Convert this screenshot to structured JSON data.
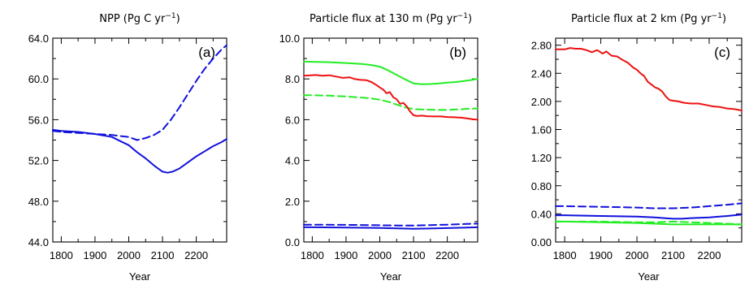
{
  "colors": {
    "red": "#ee1111",
    "green": "#22ee22",
    "blue": "#1111dd"
  },
  "chart_data": [
    {
      "type": "line",
      "title": "NPP (Pg C yr",
      "title_sup": "−1",
      "title_tail": ")",
      "panel_label": "(a)",
      "xlabel": "Year",
      "ylabel": "",
      "xlim": [
        1775,
        2290
      ],
      "ylim": [
        44.0,
        64.0
      ],
      "x_ticks": [
        1800,
        1900,
        2000,
        2100,
        2200
      ],
      "y_ticks": [
        "44.0",
        "48.0",
        "52.0",
        "56.0",
        "60.0",
        "64.0"
      ],
      "series": [
        {
          "color": "blue",
          "dash": false,
          "x": [
            1775,
            1800,
            1850,
            1900,
            1950,
            1975,
            2000,
            2025,
            2050,
            2075,
            2100,
            2115,
            2130,
            2150,
            2175,
            2200,
            2225,
            2250,
            2275,
            2290
          ],
          "y": [
            55.0,
            54.9,
            54.8,
            54.6,
            54.3,
            53.9,
            53.5,
            52.8,
            52.2,
            51.5,
            50.9,
            50.8,
            50.9,
            51.2,
            51.8,
            52.4,
            52.9,
            53.4,
            53.8,
            54.1
          ]
        },
        {
          "color": "blue",
          "dash": true,
          "x": [
            1775,
            1800,
            1850,
            1900,
            1950,
            1975,
            2000,
            2025,
            2050,
            2075,
            2100,
            2125,
            2150,
            2175,
            2200,
            2225,
            2250,
            2275,
            2290
          ],
          "y": [
            54.9,
            54.8,
            54.7,
            54.6,
            54.5,
            54.4,
            54.3,
            54.0,
            54.2,
            54.5,
            55.0,
            56.0,
            57.2,
            58.5,
            59.8,
            61.0,
            62.0,
            62.9,
            63.3
          ]
        }
      ]
    },
    {
      "type": "line",
      "title": "Particle flux at 130 m (Pg yr",
      "title_sup": "−1",
      "title_tail": ")",
      "panel_label": "(b)",
      "xlabel": "Year",
      "ylabel": "",
      "xlim": [
        1775,
        2290
      ],
      "ylim": [
        0.0,
        10.0
      ],
      "x_ticks": [
        1800,
        1900,
        2000,
        2100,
        2200
      ],
      "y_ticks": [
        "0.0",
        "2.0",
        "4.0",
        "6.0",
        "8.0",
        "10.0"
      ],
      "series": [
        {
          "color": "green",
          "dash": false,
          "x": [
            1775,
            1800,
            1850,
            1900,
            1950,
            1975,
            2000,
            2025,
            2050,
            2075,
            2100,
            2125,
            2150,
            2175,
            2200,
            2225,
            2250,
            2275,
            2290
          ],
          "y": [
            8.85,
            8.84,
            8.82,
            8.78,
            8.73,
            8.68,
            8.6,
            8.42,
            8.2,
            7.98,
            7.78,
            7.74,
            7.75,
            7.78,
            7.82,
            7.85,
            7.9,
            7.96,
            8.0
          ]
        },
        {
          "color": "green",
          "dash": true,
          "x": [
            1775,
            1800,
            1850,
            1900,
            1950,
            1975,
            2000,
            2025,
            2050,
            2075,
            2100,
            2125,
            2150,
            2175,
            2200,
            2225,
            2250,
            2275,
            2290
          ],
          "y": [
            7.2,
            7.2,
            7.18,
            7.14,
            7.08,
            7.04,
            6.98,
            6.88,
            6.74,
            6.6,
            6.52,
            6.5,
            6.49,
            6.48,
            6.48,
            6.5,
            6.52,
            6.54,
            6.55
          ]
        },
        {
          "color": "red",
          "dash": false,
          "x": [
            1775,
            1790,
            1810,
            1830,
            1850,
            1870,
            1890,
            1910,
            1925,
            1940,
            1960,
            1975,
            1990,
            2000,
            2010,
            2020,
            2030,
            2040,
            2050,
            2060,
            2070,
            2080,
            2090,
            2100,
            2110,
            2125,
            2140,
            2160,
            2180,
            2200,
            2220,
            2240,
            2260,
            2275,
            2290
          ],
          "y": [
            8.16,
            8.17,
            8.19,
            8.16,
            8.18,
            8.12,
            8.05,
            8.08,
            8.0,
            7.96,
            7.94,
            7.85,
            7.7,
            7.58,
            7.48,
            7.3,
            7.35,
            7.1,
            7.0,
            6.78,
            6.82,
            6.65,
            6.4,
            6.22,
            6.18,
            6.2,
            6.17,
            6.16,
            6.16,
            6.13,
            6.12,
            6.1,
            6.06,
            6.02,
            6.0
          ]
        },
        {
          "color": "blue",
          "dash": false,
          "x": [
            1775,
            1800,
            1900,
            2000,
            2050,
            2100,
            2150,
            2200,
            2250,
            2290
          ],
          "y": [
            0.72,
            0.72,
            0.71,
            0.69,
            0.67,
            0.65,
            0.66,
            0.68,
            0.7,
            0.72
          ]
        },
        {
          "color": "blue",
          "dash": true,
          "x": [
            1775,
            1800,
            1900,
            2000,
            2050,
            2100,
            2150,
            2200,
            2250,
            2290
          ],
          "y": [
            0.85,
            0.85,
            0.84,
            0.82,
            0.81,
            0.81,
            0.83,
            0.85,
            0.88,
            0.9
          ]
        }
      ]
    },
    {
      "type": "line",
      "title": "Particle flux at 2 km (Pg yr",
      "title_sup": "−1",
      "title_tail": ")",
      "panel_label": "(c)",
      "xlabel": "Year",
      "ylabel": "",
      "xlim": [
        1775,
        2290
      ],
      "ylim": [
        0.0,
        2.9
      ],
      "x_ticks": [
        1800,
        1900,
        2000,
        2100,
        2200
      ],
      "y_ticks": [
        "0.00",
        "0.40",
        "0.80",
        "1.20",
        "1.60",
        "2.00",
        "2.40",
        "2.80"
      ],
      "series": [
        {
          "color": "red",
          "dash": false,
          "x": [
            1775,
            1800,
            1815,
            1830,
            1845,
            1860,
            1875,
            1890,
            1905,
            1915,
            1930,
            1945,
            1960,
            1975,
            1990,
            2000,
            2010,
            2020,
            2030,
            2040,
            2050,
            2060,
            2070,
            2080,
            2090,
            2100,
            2115,
            2130,
            2150,
            2170,
            2190,
            2210,
            2230,
            2250,
            2270,
            2290
          ],
          "y": [
            2.74,
            2.74,
            2.76,
            2.75,
            2.75,
            2.73,
            2.7,
            2.73,
            2.68,
            2.71,
            2.65,
            2.64,
            2.59,
            2.55,
            2.48,
            2.45,
            2.4,
            2.36,
            2.28,
            2.24,
            2.2,
            2.18,
            2.14,
            2.07,
            2.02,
            2.01,
            2.0,
            1.98,
            1.97,
            1.97,
            1.95,
            1.93,
            1.92,
            1.9,
            1.89,
            1.87
          ]
        },
        {
          "color": "blue",
          "dash": true,
          "x": [
            1775,
            1800,
            1900,
            2000,
            2050,
            2100,
            2150,
            2200,
            2250,
            2290
          ],
          "y": [
            0.51,
            0.51,
            0.5,
            0.49,
            0.48,
            0.48,
            0.49,
            0.51,
            0.53,
            0.55
          ]
        },
        {
          "color": "blue",
          "dash": false,
          "x": [
            1775,
            1800,
            1900,
            2000,
            2050,
            2075,
            2100,
            2125,
            2150,
            2200,
            2250,
            2290
          ],
          "y": [
            0.38,
            0.38,
            0.37,
            0.36,
            0.35,
            0.34,
            0.33,
            0.33,
            0.34,
            0.35,
            0.37,
            0.39
          ]
        },
        {
          "color": "green",
          "dash": true,
          "x": [
            1775,
            1800,
            1900,
            2000,
            2050,
            2100,
            2150,
            2200,
            2250,
            2290
          ],
          "y": [
            0.29,
            0.29,
            0.29,
            0.28,
            0.28,
            0.29,
            0.28,
            0.27,
            0.26,
            0.25
          ]
        },
        {
          "color": "green",
          "dash": false,
          "x": [
            1775,
            1800,
            1900,
            2000,
            2050,
            2100,
            2150,
            2200,
            2250,
            2290
          ],
          "y": [
            0.29,
            0.29,
            0.28,
            0.27,
            0.26,
            0.25,
            0.25,
            0.25,
            0.25,
            0.25
          ]
        }
      ]
    }
  ]
}
